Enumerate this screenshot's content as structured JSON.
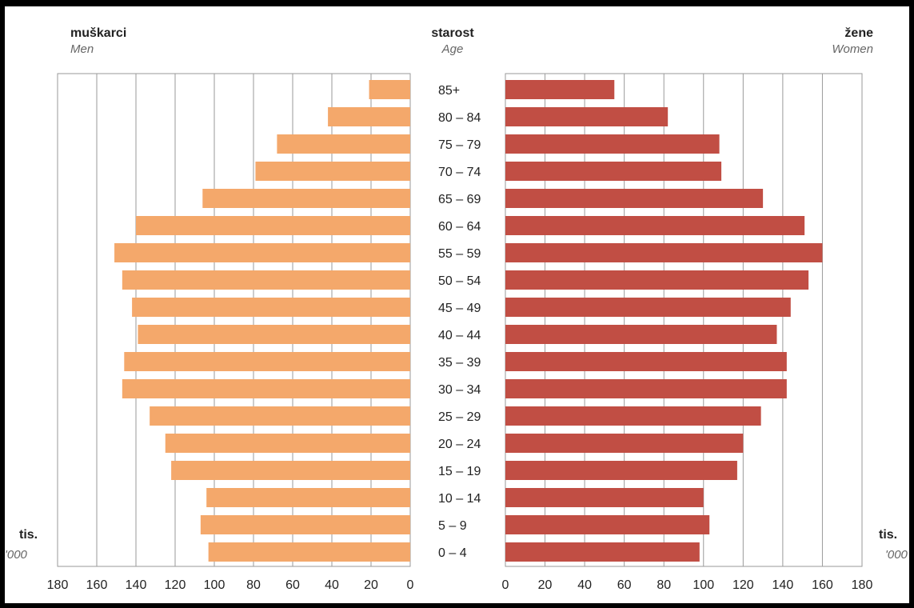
{
  "chart_data": {
    "type": "bar",
    "orientation": "horizontal",
    "layout": "population-pyramid",
    "categories": [
      "0 – 4",
      "5 – 9",
      "10 – 14",
      "15 – 19",
      "20 – 24",
      "25 – 29",
      "30 – 34",
      "35 – 39",
      "40 – 44",
      "45 – 49",
      "50 – 54",
      "55 – 59",
      "60 – 64",
      "65 – 69",
      "70 – 74",
      "75 – 79",
      "80 – 84",
      "85+"
    ],
    "series": [
      {
        "name": "muškarci",
        "name_en": "Men",
        "color": "#f4a86b",
        "values": [
          103,
          107,
          104,
          122,
          125,
          133,
          147,
          146,
          139,
          142,
          147,
          151,
          140,
          106,
          79,
          68,
          42,
          21
        ]
      },
      {
        "name": "žene",
        "name_en": "Women",
        "color": "#c14e44",
        "values": [
          98,
          103,
          100,
          117,
          120,
          129,
          142,
          142,
          137,
          144,
          153,
          160,
          151,
          130,
          109,
          108,
          82,
          55
        ]
      }
    ],
    "left_label": {
      "title": "muškarci",
      "subtitle": "Men"
    },
    "center_label": {
      "title": "starost",
      "subtitle": "Age"
    },
    "right_label": {
      "title": "žene",
      "subtitle": "Women"
    },
    "unit_left": {
      "line1": "tis.",
      "line2": "'000"
    },
    "unit_right": {
      "line1": "tis.",
      "line2": "'000"
    },
    "xlim": [
      0,
      180
    ],
    "xticks": [
      0,
      20,
      40,
      60,
      80,
      100,
      120,
      140,
      160,
      180
    ],
    "grid": true
  }
}
